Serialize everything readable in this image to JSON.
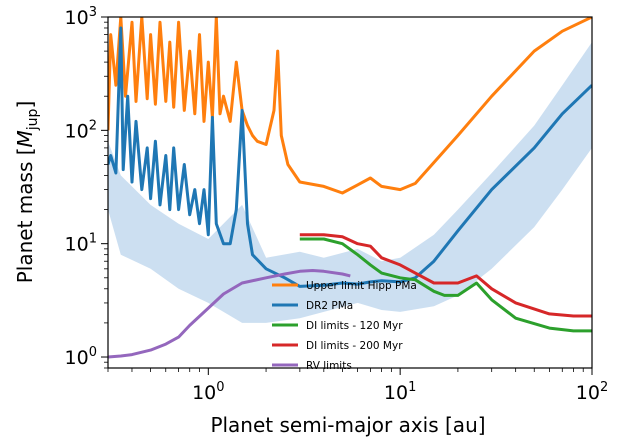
{
  "chart_data": {
    "type": "line",
    "xscale": "log",
    "yscale": "log",
    "xlim": [
      0.3,
      100
    ],
    "ylim": [
      0.8,
      1000
    ],
    "xlabel": "Planet semi-major axis [au]",
    "ylabel": {
      "prefix": "Planet mass [",
      "italic": "M",
      "sub": "jup",
      "suffix": "]"
    },
    "x_ticks": [
      {
        "value": 1,
        "base": "10",
        "exp": "0"
      },
      {
        "value": 10,
        "base": "10",
        "exp": "1"
      },
      {
        "value": 100,
        "base": "10",
        "exp": "2"
      }
    ],
    "y_ticks": [
      {
        "value": 1,
        "base": "10",
        "exp": "0"
      },
      {
        "value": 10,
        "base": "10",
        "exp": "1"
      },
      {
        "value": 100,
        "base": "10",
        "exp": "2"
      },
      {
        "value": 1000,
        "base": "10",
        "exp": "3"
      }
    ],
    "legend_position": "lower-center",
    "grid": false,
    "band": {
      "color": "#c6dbef",
      "x": [
        0.3,
        0.35,
        0.5,
        0.7,
        1.0,
        1.5,
        2.0,
        3.0,
        4.0,
        6.0,
        8.0,
        10,
        15,
        20,
        30,
        50,
        70,
        100
      ],
      "lower": [
        20,
        8,
        6,
        4,
        3.0,
        2.0,
        2.0,
        2.2,
        2.5,
        3.0,
        2.6,
        2.5,
        2.8,
        3.5,
        6,
        14,
        30,
        70
      ],
      "upper": [
        80,
        40,
        22,
        15,
        11,
        22,
        7.5,
        8.5,
        7.5,
        9.0,
        7.0,
        7.5,
        12,
        20,
        42,
        110,
        250,
        600
      ]
    },
    "series": [
      {
        "name": "Upper limit Hipp PMa",
        "color": "#ff7f0e",
        "x": [
          0.3,
          0.31,
          0.33,
          0.35,
          0.37,
          0.4,
          0.42,
          0.45,
          0.48,
          0.5,
          0.53,
          0.56,
          0.6,
          0.63,
          0.66,
          0.7,
          0.75,
          0.8,
          0.85,
          0.9,
          0.95,
          1.0,
          1.05,
          1.1,
          1.15,
          1.2,
          1.3,
          1.4,
          1.5,
          1.6,
          1.7,
          1.8,
          2.0,
          2.2,
          2.3,
          2.4,
          2.6,
          3.0,
          4.0,
          5.0,
          6.0,
          7.0,
          8.0,
          10,
          12,
          15,
          20,
          30,
          50,
          70,
          100
        ],
        "y": [
          100,
          700,
          250,
          1000,
          200,
          900,
          180,
          1000,
          190,
          700,
          170,
          900,
          180,
          600,
          160,
          900,
          150,
          500,
          140,
          700,
          120,
          400,
          130,
          1000,
          140,
          200,
          120,
          400,
          150,
          110,
          90,
          80,
          75,
          150,
          500,
          90,
          50,
          35,
          32,
          28,
          33,
          38,
          32,
          30,
          34,
          52,
          90,
          200,
          500,
          750,
          1000
        ]
      },
      {
        "name": "DR2 PMa",
        "color": "#1f77b4",
        "x": [
          0.3,
          0.31,
          0.33,
          0.35,
          0.36,
          0.38,
          0.4,
          0.42,
          0.45,
          0.48,
          0.5,
          0.53,
          0.56,
          0.6,
          0.63,
          0.66,
          0.7,
          0.75,
          0.8,
          0.85,
          0.9,
          0.95,
          1.0,
          1.05,
          1.1,
          1.2,
          1.3,
          1.4,
          1.5,
          1.6,
          1.7,
          2.0,
          2.5,
          3.0,
          4.0,
          5.0,
          6.0,
          7.0,
          8.0,
          10,
          12,
          15,
          20,
          30,
          50,
          70,
          100
        ],
        "y": [
          50,
          60,
          42,
          800,
          45,
          200,
          35,
          120,
          30,
          70,
          25,
          80,
          22,
          60,
          20,
          70,
          20,
          50,
          18,
          30,
          15,
          30,
          12,
          130,
          15,
          10,
          10,
          20,
          150,
          15,
          8,
          6,
          5,
          4.2,
          4.3,
          4.5,
          4.4,
          4.6,
          4.7,
          4.6,
          5.0,
          7.0,
          13,
          30,
          70,
          140,
          250
        ]
      },
      {
        "name": "DI limits - 120 Myr",
        "color": "#2ca02c",
        "x": [
          3.0,
          4.0,
          5.0,
          6.0,
          7.0,
          8.0,
          10,
          12,
          15,
          17,
          20,
          25,
          30,
          40,
          60,
          80,
          100
        ],
        "y": [
          11,
          11,
          10,
          8,
          6.5,
          5.5,
          5.0,
          4.8,
          3.8,
          3.5,
          3.5,
          4.5,
          3.2,
          2.2,
          1.8,
          1.7,
          1.7
        ]
      },
      {
        "name": "DI limits - 200 Myr",
        "color": "#d62728",
        "x": [
          3.0,
          4.0,
          5.0,
          6.0,
          7.0,
          8.0,
          10,
          12,
          15,
          20,
          25,
          30,
          40,
          60,
          80,
          100
        ],
        "y": [
          12,
          12,
          11.5,
          10,
          9.5,
          7.5,
          6.5,
          5.5,
          4.5,
          4.5,
          5.2,
          4.0,
          3.0,
          2.4,
          2.3,
          2.3
        ]
      },
      {
        "name": "RV limits",
        "color": "#9467bd",
        "x": [
          0.3,
          0.35,
          0.4,
          0.5,
          0.6,
          0.7,
          0.8,
          1.0,
          1.2,
          1.5,
          2.0,
          2.5,
          3.0,
          3.5,
          4.0,
          5.0,
          5.5
        ],
        "y": [
          1.0,
          1.02,
          1.05,
          1.15,
          1.3,
          1.5,
          1.9,
          2.7,
          3.6,
          4.5,
          5.0,
          5.4,
          5.7,
          5.8,
          5.7,
          5.4,
          5.2
        ]
      }
    ]
  }
}
